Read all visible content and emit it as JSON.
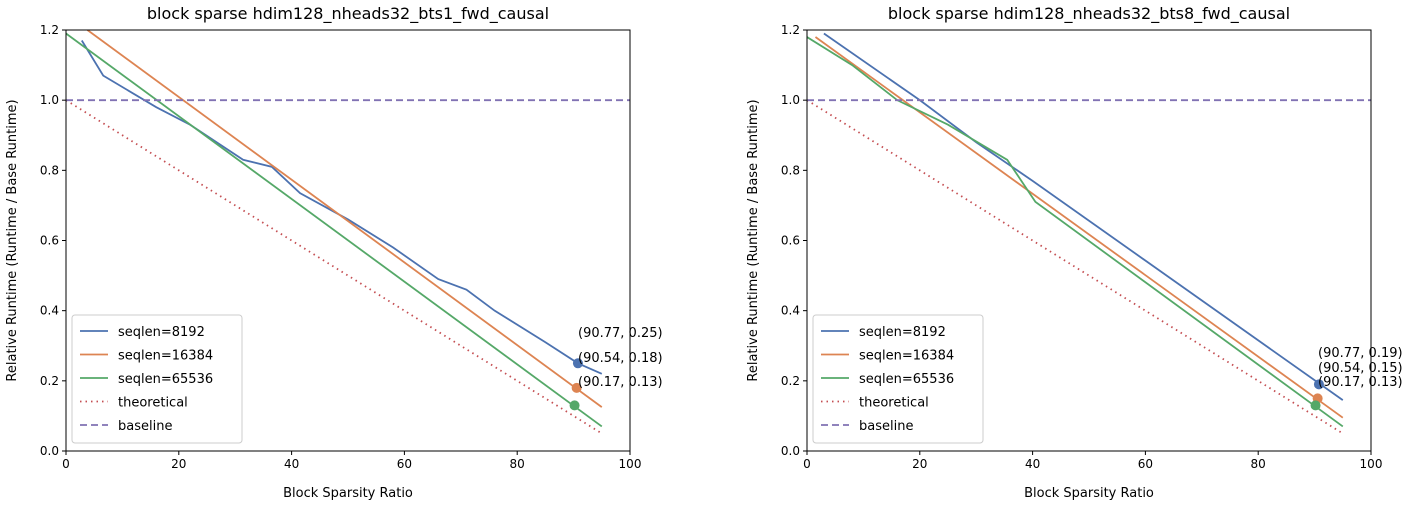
{
  "chart_data": [
    {
      "type": "line",
      "title": "block sparse hdim128_nheads32_bts1_fwd_causal",
      "xlabel": "Block Sparsity Ratio",
      "ylabel": "Relative Runtime (Runtime / Base Runtime)",
      "xlim": [
        0,
        100
      ],
      "ylim": [
        0,
        1.2
      ],
      "xticks": [
        "0",
        "20",
        "40",
        "60",
        "80",
        "100"
      ],
      "yticks": [
        "0.0",
        "0.2",
        "0.4",
        "0.6",
        "0.8",
        "1.0",
        "1.2"
      ],
      "grid": false,
      "legend": "lower-left",
      "series": [
        {
          "name": "seqlen=8192",
          "color": "#4c72b0",
          "style": "solid",
          "x": [
            2.8,
            6.6,
            16,
            22,
            31.4,
            36.5,
            41.5,
            50,
            58,
            66,
            71,
            76,
            85,
            90.77,
            95
          ],
          "y": [
            1.17,
            1.07,
            0.98,
            0.93,
            0.83,
            0.81,
            0.735,
            0.66,
            0.58,
            0.49,
            0.46,
            0.4,
            0.31,
            0.25,
            0.22
          ],
          "marker": {
            "x": 90.77,
            "y": 0.25,
            "label": "(90.77, 0.25)"
          }
        },
        {
          "name": "seqlen=16384",
          "color": "#dd8452",
          "style": "solid",
          "x": [
            3.8,
            95
          ],
          "y": [
            1.2,
            0.125
          ],
          "marker": {
            "x": 90.54,
            "y": 0.18,
            "label": "(90.54, 0.18)"
          }
        },
        {
          "name": "seqlen=65536",
          "color": "#55a868",
          "style": "solid",
          "x": [
            0,
            95
          ],
          "y": [
            1.19,
            0.07
          ],
          "marker": {
            "x": 90.17,
            "y": 0.13,
            "label": "(90.17, 0.13)"
          }
        },
        {
          "name": "theoretical",
          "color": "#c44e52",
          "style": "dotted",
          "x": [
            0,
            95
          ],
          "y": [
            1.0,
            0.05
          ]
        },
        {
          "name": "baseline",
          "color": "#8172b3",
          "style": "dashed",
          "x": [
            0,
            100
          ],
          "y": [
            1.0,
            1.0
          ]
        }
      ]
    },
    {
      "type": "line",
      "title": "block sparse hdim128_nheads32_bts8_fwd_causal",
      "xlabel": "Block Sparsity Ratio",
      "ylabel": "Relative Runtime (Runtime / Base Runtime)",
      "xlim": [
        0,
        100
      ],
      "ylim": [
        0,
        1.2
      ],
      "xticks": [
        "0",
        "20",
        "40",
        "60",
        "80",
        "100"
      ],
      "yticks": [
        "0.0",
        "0.2",
        "0.4",
        "0.6",
        "0.8",
        "1.0",
        "1.2"
      ],
      "grid": false,
      "legend": "lower-left",
      "series": [
        {
          "name": "seqlen=8192",
          "color": "#4c72b0",
          "style": "solid",
          "x": [
            3,
            20,
            30,
            40,
            95
          ],
          "y": [
            1.19,
            1.0,
            0.88,
            0.77,
            0.145
          ],
          "marker": {
            "x": 90.77,
            "y": 0.19,
            "label": "(90.77, 0.19)"
          }
        },
        {
          "name": "seqlen=16384",
          "color": "#dd8452",
          "style": "solid",
          "x": [
            1.5,
            95
          ],
          "y": [
            1.18,
            0.095
          ],
          "marker": {
            "x": 90.54,
            "y": 0.15,
            "label": "(90.54, 0.15)"
          }
        },
        {
          "name": "seqlen=65536",
          "color": "#55a868",
          "style": "solid",
          "x": [
            0,
            8,
            16,
            25,
            35.5,
            40.5,
            95
          ],
          "y": [
            1.18,
            1.1,
            1.0,
            0.93,
            0.83,
            0.71,
            0.07
          ],
          "marker": {
            "x": 90.17,
            "y": 0.13,
            "label": "(90.17, 0.13)"
          }
        },
        {
          "name": "theoretical",
          "color": "#c44e52",
          "style": "dotted",
          "x": [
            0,
            95
          ],
          "y": [
            1.0,
            0.05
          ]
        },
        {
          "name": "baseline",
          "color": "#8172b3",
          "style": "dashed",
          "x": [
            0,
            100
          ],
          "y": [
            1.0,
            1.0
          ]
        }
      ]
    }
  ]
}
